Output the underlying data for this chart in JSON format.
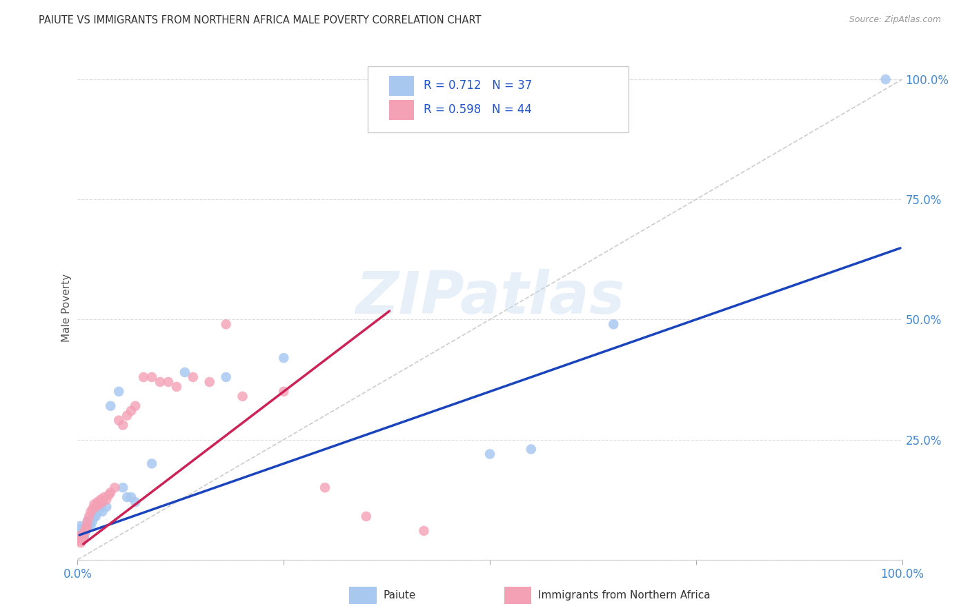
{
  "title": "PAIUTE VS IMMIGRANTS FROM NORTHERN AFRICA MALE POVERTY CORRELATION CHART",
  "source": "Source: ZipAtlas.com",
  "ylabel": "Male Poverty",
  "watermark": "ZIPatlas",
  "xlim": [
    0.0,
    1.0
  ],
  "ylim": [
    0.0,
    1.05
  ],
  "color_paiute": "#a8c8f0",
  "color_immigrants": "#f4a0b5",
  "color_trendline_paiute": "#1a44bb",
  "color_trendline_immigrants": "#cc2255",
  "color_reference_line": "#cccccc",
  "color_grid": "#dddddd",
  "background_color": "#ffffff",
  "tick_color": "#4488cc",
  "legend_label1": "Paiute",
  "legend_label2": "Immigrants from Northern Africa",
  "R1": "0.712",
  "N1": "37",
  "R2": "0.598",
  "N2": "44",
  "paiute_x": [
    0.001,
    0.002,
    0.003,
    0.004,
    0.005,
    0.006,
    0.007,
    0.008,
    0.009,
    0.01,
    0.011,
    0.012,
    0.013,
    0.014,
    0.015,
    0.016,
    0.018,
    0.02,
    0.022,
    0.025,
    0.028,
    0.03,
    0.035,
    0.04,
    0.05,
    0.055,
    0.06,
    0.065,
    0.07,
    0.09,
    0.13,
    0.18,
    0.25,
    0.5,
    0.55,
    0.65,
    0.98
  ],
  "paiute_y": [
    0.05,
    0.06,
    0.07,
    0.055,
    0.065,
    0.06,
    0.05,
    0.045,
    0.055,
    0.06,
    0.065,
    0.08,
    0.07,
    0.075,
    0.08,
    0.07,
    0.08,
    0.09,
    0.09,
    0.1,
    0.11,
    0.1,
    0.11,
    0.32,
    0.35,
    0.15,
    0.13,
    0.13,
    0.12,
    0.2,
    0.39,
    0.38,
    0.42,
    0.22,
    0.23,
    0.49,
    1.0
  ],
  "immigrants_x": [
    0.001,
    0.002,
    0.003,
    0.004,
    0.005,
    0.006,
    0.007,
    0.008,
    0.009,
    0.01,
    0.011,
    0.012,
    0.014,
    0.016,
    0.018,
    0.02,
    0.022,
    0.024,
    0.026,
    0.028,
    0.03,
    0.032,
    0.035,
    0.038,
    0.04,
    0.045,
    0.05,
    0.055,
    0.06,
    0.065,
    0.07,
    0.08,
    0.09,
    0.1,
    0.11,
    0.12,
    0.14,
    0.16,
    0.18,
    0.2,
    0.25,
    0.3,
    0.35,
    0.42
  ],
  "immigrants_y": [
    0.045,
    0.04,
    0.05,
    0.035,
    0.04,
    0.05,
    0.045,
    0.055,
    0.06,
    0.065,
    0.07,
    0.08,
    0.09,
    0.1,
    0.105,
    0.115,
    0.11,
    0.12,
    0.115,
    0.125,
    0.12,
    0.13,
    0.125,
    0.135,
    0.14,
    0.15,
    0.29,
    0.28,
    0.3,
    0.31,
    0.32,
    0.38,
    0.38,
    0.37,
    0.37,
    0.36,
    0.38,
    0.37,
    0.49,
    0.34,
    0.35,
    0.15,
    0.09,
    0.06
  ],
  "trendline_paiute_x0": 0.0,
  "trendline_paiute_y0": 0.05,
  "trendline_paiute_x1": 1.0,
  "trendline_paiute_y1": 0.65,
  "trendline_immigrants_x0": 0.005,
  "trendline_immigrants_y0": 0.03,
  "trendline_immigrants_x1": 0.38,
  "trendline_immigrants_y1": 0.52
}
